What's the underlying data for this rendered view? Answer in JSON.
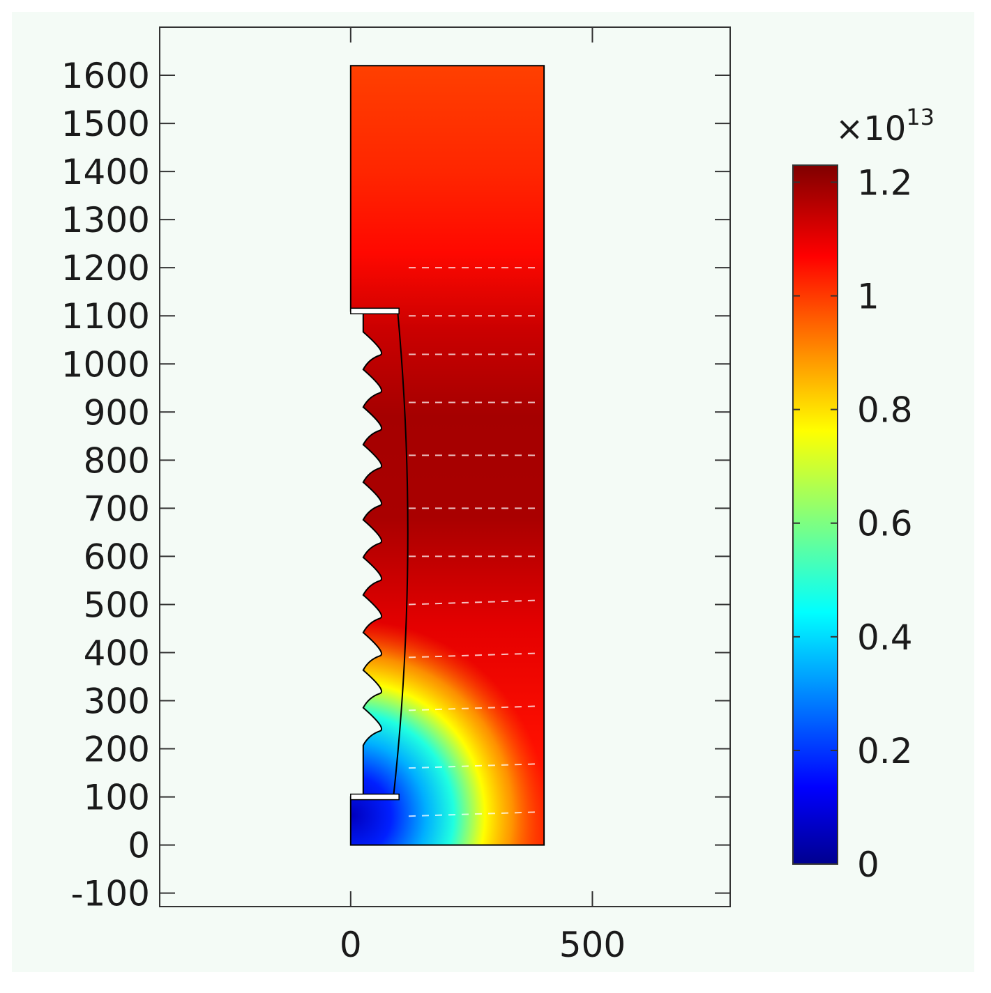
{
  "chart_data": {
    "type": "heatmap",
    "title": "",
    "xlabel": "",
    "ylabel": "",
    "xlim": [
      -395,
      785
    ],
    "ylim": [
      -128,
      1700
    ],
    "x_ticks": [
      "0",
      "500"
    ],
    "x_tick_values": [
      0,
      500
    ],
    "y_ticks": [
      "-100",
      "0",
      "100",
      "200",
      "300",
      "400",
      "500",
      "600",
      "700",
      "800",
      "900",
      "1000",
      "1100",
      "1200",
      "1300",
      "1400",
      "1500",
      "1600"
    ],
    "y_tick_values": [
      -100,
      0,
      100,
      200,
      300,
      400,
      500,
      600,
      700,
      800,
      900,
      1000,
      1100,
      1200,
      1300,
      1400,
      1500,
      1600
    ],
    "domain": {
      "x_range": [
        0,
        400
      ],
      "y_range": [
        0,
        1620
      ],
      "cutout_x_range": [
        0,
        100
      ],
      "cutout_y_range": [
        100,
        1110
      ],
      "fin_count": 11
    },
    "colorbar": {
      "multiplier": "×10",
      "exponent": "13",
      "range": [
        0,
        1.23
      ],
      "colormap": "jet",
      "ticks": [
        "0",
        "0.2",
        "0.4",
        "0.6",
        "0.8",
        "1",
        "1.2"
      ],
      "tick_values": [
        0,
        0.2,
        0.4,
        0.6,
        0.8,
        1.0,
        1.2
      ]
    },
    "field_samples": [
      {
        "x": 30,
        "y": 20,
        "value": 0.05
      },
      {
        "x": 150,
        "y": 50,
        "value": 0.45
      },
      {
        "x": 300,
        "y": 50,
        "value": 0.78
      },
      {
        "x": 200,
        "y": 250,
        "value": 0.85
      },
      {
        "x": 250,
        "y": 400,
        "value": 1.05
      },
      {
        "x": 250,
        "y": 700,
        "value": 1.2
      },
      {
        "x": 250,
        "y": 1000,
        "value": 1.15
      },
      {
        "x": 250,
        "y": 1300,
        "value": 1.05
      },
      {
        "x": 250,
        "y": 1600,
        "value": 0.95
      }
    ],
    "colors": {
      "background": "#f4fbf6",
      "axis": "#333333"
    }
  }
}
